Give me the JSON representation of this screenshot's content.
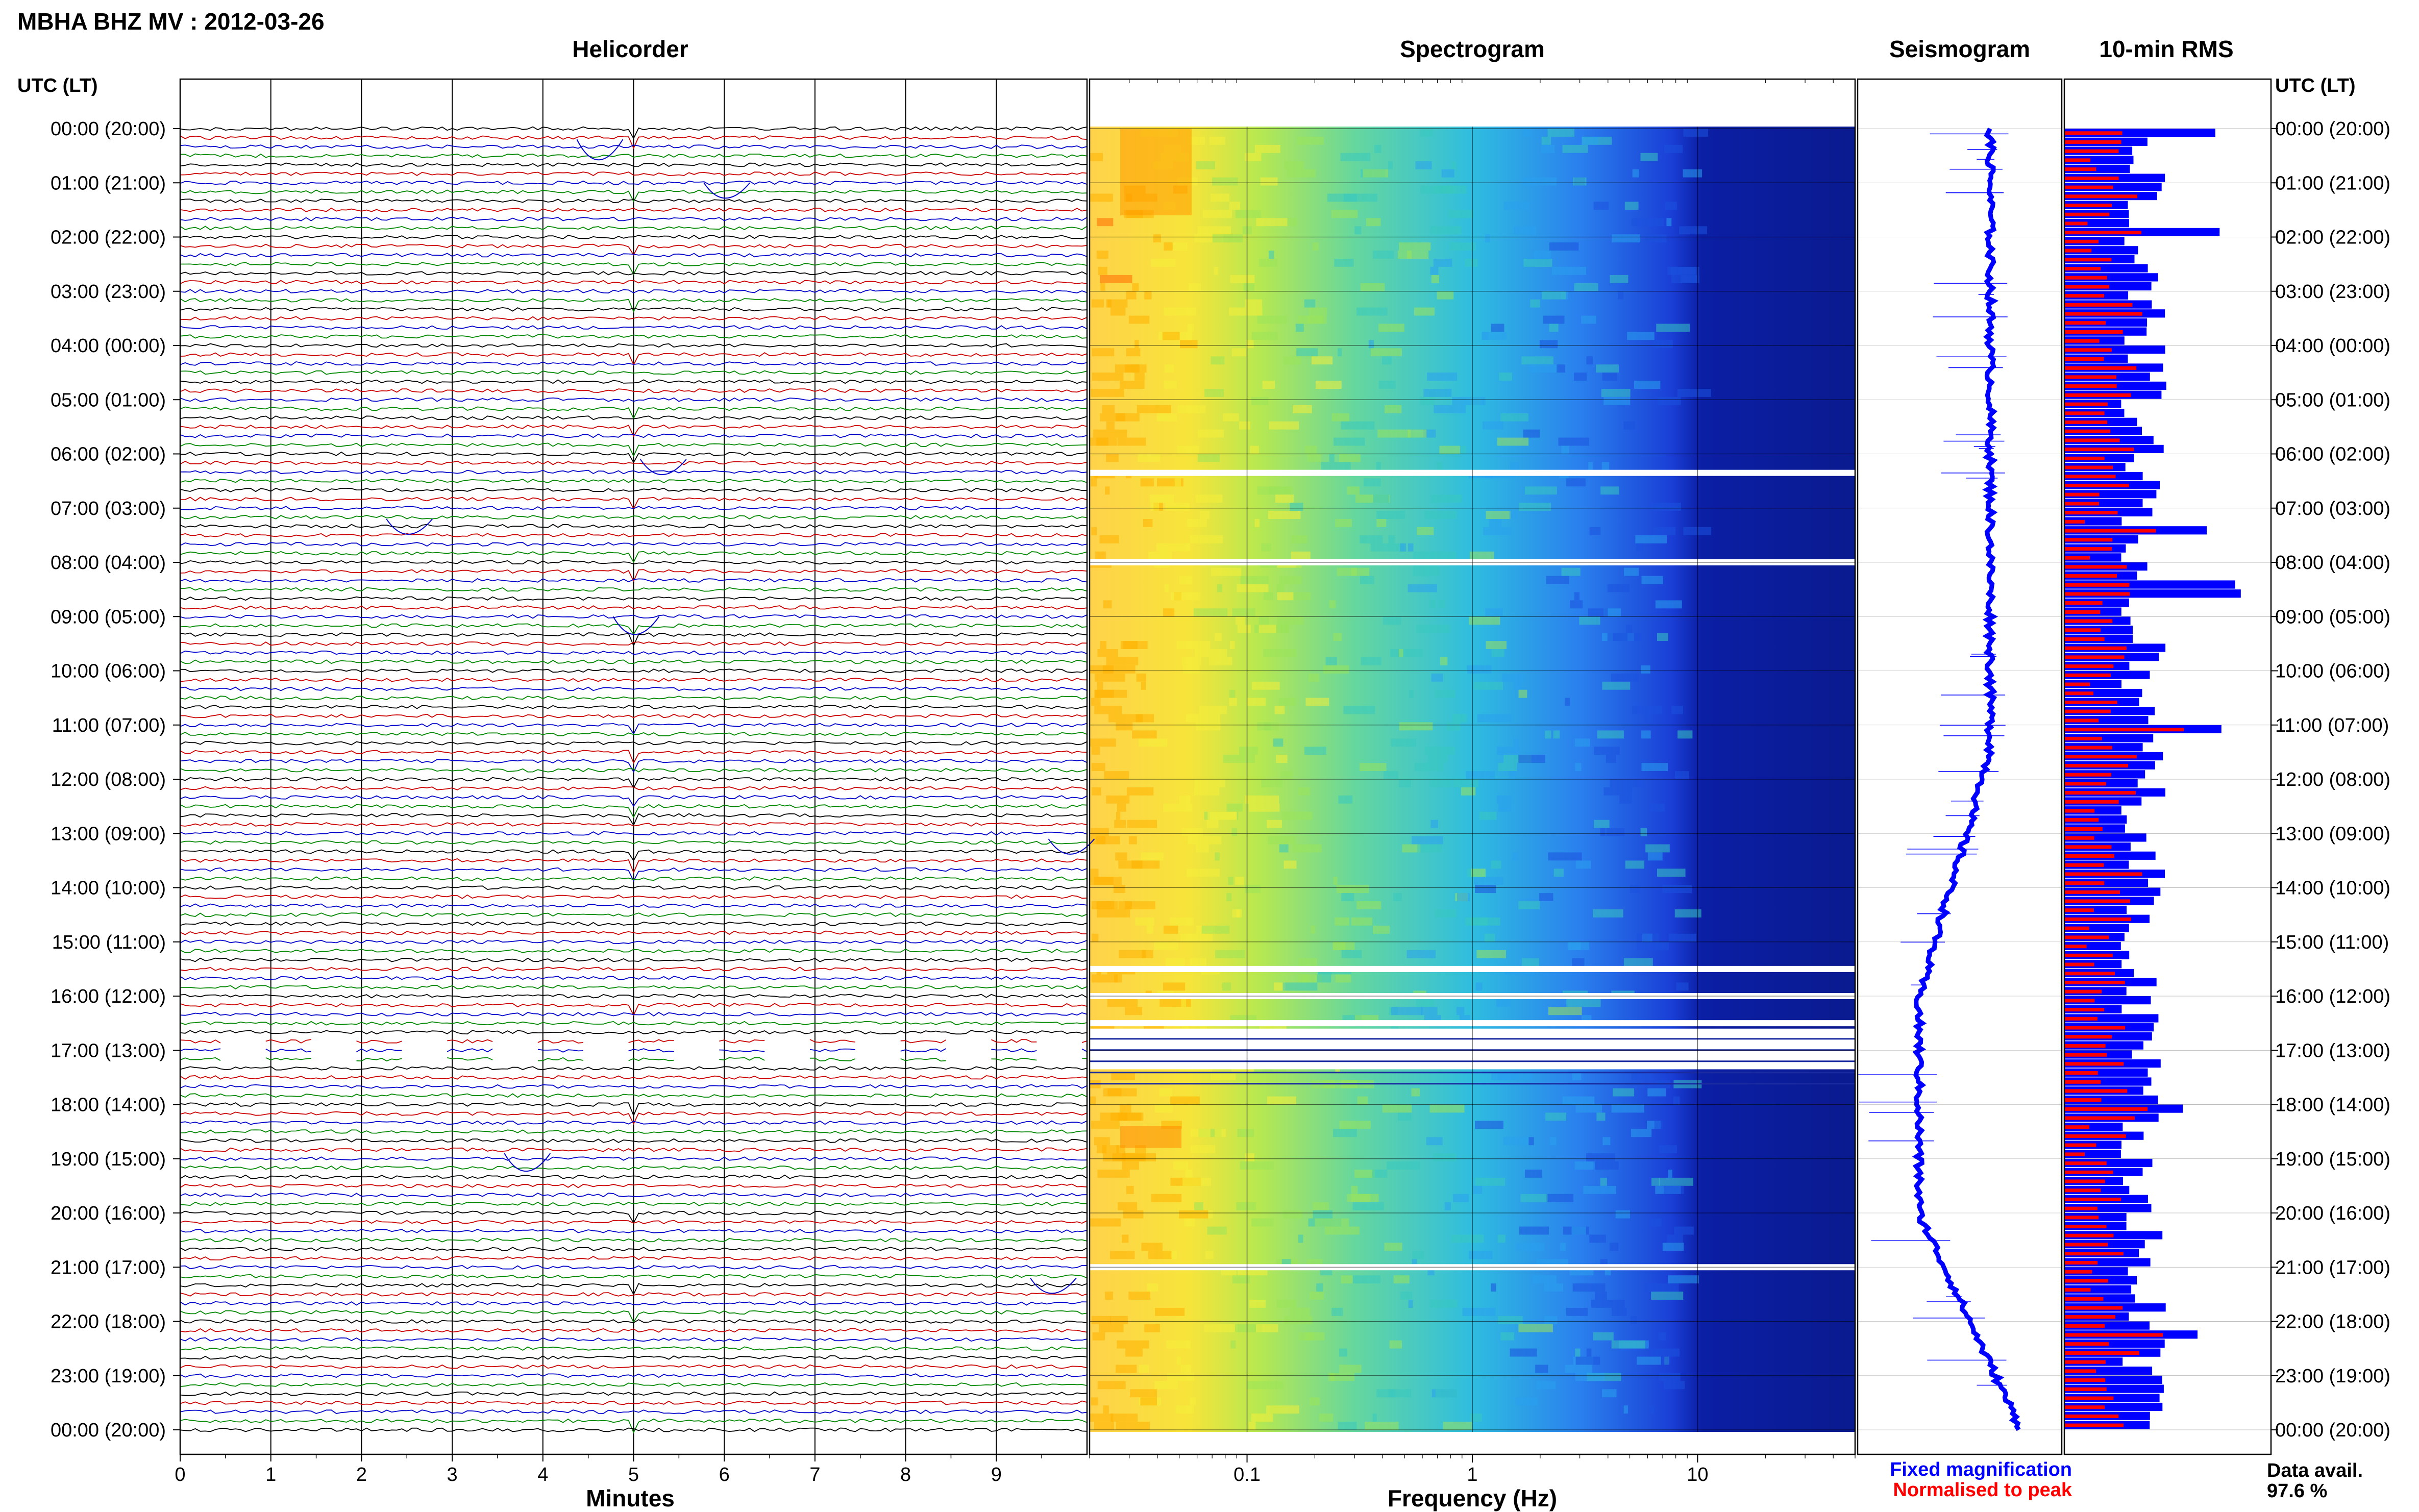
{
  "header": {
    "title": "MBHA BHZ MV : 2012-03-26"
  },
  "panels": {
    "helicorder": "Helicorder",
    "spectrogram": "Spectrogram",
    "seismogram": "Seismogram",
    "rms": "10-min RMS"
  },
  "time_axis_label": "UTC (LT)",
  "time_labels": [
    "00:00 (20:00)",
    "01:00 (21:00)",
    "02:00 (22:00)",
    "03:00 (23:00)",
    "04:00 (00:00)",
    "05:00 (01:00)",
    "06:00 (02:00)",
    "07:00 (03:00)",
    "08:00 (04:00)",
    "09:00 (05:00)",
    "10:00 (06:00)",
    "11:00 (07:00)",
    "12:00 (08:00)",
    "13:00 (09:00)",
    "14:00 (10:00)",
    "15:00 (11:00)",
    "16:00 (12:00)",
    "17:00 (13:00)",
    "18:00 (14:00)",
    "19:00 (15:00)",
    "20:00 (16:00)",
    "21:00 (17:00)",
    "22:00 (18:00)",
    "23:00 (19:00)",
    "00:00 (20:00)"
  ],
  "legend": {
    "fixed": "Fixed magnification",
    "normalised": "Normalised to peak",
    "data_avail_label": "Data avail.",
    "data_avail_value": "97.6 %"
  },
  "colors": {
    "fixed": "#0000ff",
    "normalised": "#ff0000"
  },
  "chart_data": [
    {
      "type": "line",
      "title": "Helicorder",
      "xlabel": "Minutes",
      "x_ticks": [
        0,
        1,
        2,
        3,
        4,
        5,
        6,
        7,
        8,
        9
      ],
      "xlim": [
        0,
        10
      ],
      "rows_per_hour": 6,
      "trace_colors": [
        "#000000",
        "#cc0000",
        "#0000cc",
        "#008800"
      ],
      "gap_hours": [
        16.8,
        17.2
      ]
    },
    {
      "type": "heatmap",
      "title": "Spectrogram",
      "xlabel": "Frequency (Hz)",
      "x_scale": "log",
      "xlim": [
        0.02,
        50
      ],
      "x_tick_labels": [
        "0.1",
        "1",
        "10"
      ],
      "x_tick_values": [
        0.1,
        1,
        10
      ],
      "blank_hours": [
        6.35,
        8.0,
        15.5,
        16.0,
        16.5,
        21.0
      ],
      "blank_range_hours": [
        16.6,
        17.35
      ]
    },
    {
      "type": "line",
      "title": "Seismogram",
      "color": "#0000ff"
    },
    {
      "type": "bar",
      "title": "10-min RMS",
      "orientation": "horizontal",
      "series": [
        {
          "name": "Fixed magnification",
          "color": "#0000ff"
        },
        {
          "name": "Normalised to peak",
          "color": "#ff0000"
        }
      ]
    }
  ]
}
